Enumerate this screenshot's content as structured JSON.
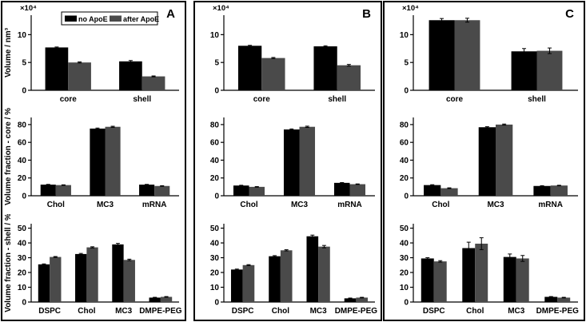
{
  "figure": {
    "background": "#ffffff",
    "border_color": "#000000",
    "panels": [
      {
        "label": "A"
      },
      {
        "label": "B"
      },
      {
        "label": "C"
      }
    ],
    "legend": {
      "items": [
        {
          "label": "no ApoE",
          "color": "#000000"
        },
        {
          "label": "after ApoE",
          "color": "#4a4a4a"
        }
      ],
      "position": "top-inside-panel-A"
    }
  },
  "colors": {
    "bar_no_apoe": "#000000",
    "bar_after_apoe": "#4a4a4a",
    "axis": "#000000",
    "background": "#ffffff"
  },
  "chart_data": [
    {
      "panel": "A",
      "row": "volume",
      "type": "bar",
      "ylabel": "Volume / nm³",
      "y_multiplier": "×10⁴",
      "show_legend": true,
      "categories": [
        "core",
        "shell"
      ],
      "ylim": [
        0,
        13.5
      ],
      "yticks": [
        0,
        5,
        10
      ],
      "grid": false,
      "series": [
        {
          "name": "no ApoE",
          "color": "#000000",
          "values": [
            7.7,
            5.2
          ],
          "errors": [
            0.08,
            0.15
          ]
        },
        {
          "name": "after ApoE",
          "color": "#4a4a4a",
          "values": [
            5.0,
            2.5
          ],
          "errors": [
            0.1,
            0.08
          ]
        }
      ]
    },
    {
      "panel": "A",
      "row": "core-fraction",
      "type": "bar",
      "ylabel": "Volume fraction - core / %",
      "y_multiplier": "",
      "show_legend": false,
      "categories": [
        "Chol",
        "MC3",
        "mRNA"
      ],
      "ylim": [
        0,
        88
      ],
      "yticks": [
        0,
        20,
        40,
        60,
        80
      ],
      "grid": false,
      "series": [
        {
          "name": "no ApoE",
          "color": "#000000",
          "values": [
            12.5,
            75.5,
            12.5
          ],
          "errors": [
            0.3,
            0.6,
            0.3
          ]
        },
        {
          "name": "after ApoE",
          "color": "#4a4a4a",
          "values": [
            12.0,
            77.5,
            11.0
          ],
          "errors": [
            0.3,
            0.6,
            0.3
          ]
        }
      ]
    },
    {
      "panel": "A",
      "row": "shell-fraction",
      "type": "bar",
      "ylabel": "Volume fraction - shell / %",
      "y_multiplier": "",
      "show_legend": false,
      "categories": [
        "DSPC",
        "Chol",
        "MC3",
        "DMPE-PEG"
      ],
      "ylim": [
        0,
        53
      ],
      "yticks": [
        0,
        10,
        20,
        30,
        40,
        50
      ],
      "grid": false,
      "series": [
        {
          "name": "no ApoE",
          "color": "#000000",
          "values": [
            25.5,
            32.5,
            39.0,
            3.0
          ],
          "errors": [
            0.3,
            0.4,
            0.7,
            0.2
          ]
        },
        {
          "name": "after ApoE",
          "color": "#4a4a4a",
          "values": [
            30.5,
            37.0,
            28.5,
            3.5
          ],
          "errors": [
            0.3,
            0.4,
            0.5,
            0.2
          ]
        }
      ]
    },
    {
      "panel": "B",
      "row": "volume",
      "type": "bar",
      "ylabel": "",
      "y_multiplier": "×10⁴",
      "show_legend": false,
      "categories": [
        "core",
        "shell"
      ],
      "ylim": [
        0,
        13.5
      ],
      "yticks": [
        0,
        5,
        10
      ],
      "grid": false,
      "series": [
        {
          "name": "no ApoE",
          "color": "#000000",
          "values": [
            8.0,
            7.9
          ],
          "errors": [
            0.08,
            0.1
          ]
        },
        {
          "name": "after ApoE",
          "color": "#4a4a4a",
          "values": [
            5.8,
            4.5
          ],
          "errors": [
            0.1,
            0.15
          ]
        }
      ]
    },
    {
      "panel": "B",
      "row": "core-fraction",
      "type": "bar",
      "ylabel": "",
      "y_multiplier": "",
      "show_legend": false,
      "categories": [
        "Chol",
        "MC3",
        "mRNA"
      ],
      "ylim": [
        0,
        88
      ],
      "yticks": [
        0,
        20,
        40,
        60,
        80
      ],
      "grid": false,
      "series": [
        {
          "name": "no ApoE",
          "color": "#000000",
          "values": [
            11.5,
            74.5,
            14.5
          ],
          "errors": [
            0.3,
            0.6,
            0.3
          ]
        },
        {
          "name": "after ApoE",
          "color": "#4a4a4a",
          "values": [
            10.0,
            77.5,
            13.0
          ],
          "errors": [
            0.3,
            0.7,
            0.3
          ]
        }
      ]
    },
    {
      "panel": "B",
      "row": "shell-fraction",
      "type": "bar",
      "ylabel": "",
      "y_multiplier": "",
      "show_legend": false,
      "categories": [
        "DSPC",
        "Chol",
        "MC3",
        "DMPE-PEG"
      ],
      "ylim": [
        0,
        53
      ],
      "yticks": [
        0,
        10,
        20,
        30,
        40,
        50
      ],
      "grid": false,
      "series": [
        {
          "name": "no ApoE",
          "color": "#000000",
          "values": [
            22.0,
            31.0,
            44.5,
            2.5
          ],
          "errors": [
            0.3,
            0.4,
            0.8,
            0.2
          ]
        },
        {
          "name": "after ApoE",
          "color": "#4a4a4a",
          "values": [
            25.0,
            35.0,
            37.5,
            3.0
          ],
          "errors": [
            0.3,
            0.4,
            0.8,
            0.2
          ]
        }
      ]
    },
    {
      "panel": "C",
      "row": "volume",
      "type": "bar",
      "ylabel": "",
      "y_multiplier": "×10⁴",
      "show_legend": false,
      "categories": [
        "core",
        "shell"
      ],
      "ylim": [
        0,
        13.5
      ],
      "yticks": [
        0,
        5,
        10
      ],
      "grid": false,
      "series": [
        {
          "name": "no ApoE",
          "color": "#000000",
          "values": [
            12.6,
            7.0
          ],
          "errors": [
            0.3,
            0.5
          ]
        },
        {
          "name": "after ApoE",
          "color": "#4a4a4a",
          "values": [
            12.6,
            7.1
          ],
          "errors": [
            0.35,
            0.5
          ]
        }
      ]
    },
    {
      "panel": "C",
      "row": "core-fraction",
      "type": "bar",
      "ylabel": "",
      "y_multiplier": "",
      "show_legend": false,
      "categories": [
        "Chol",
        "MC3",
        "mRNA"
      ],
      "ylim": [
        0,
        88
      ],
      "yticks": [
        0,
        20,
        40,
        60,
        80
      ],
      "grid": false,
      "series": [
        {
          "name": "no ApoE",
          "color": "#000000",
          "values": [
            12.0,
            77.0,
            11.0
          ],
          "errors": [
            0.4,
            0.6,
            0.3
          ]
        },
        {
          "name": "after ApoE",
          "color": "#4a4a4a",
          "values": [
            8.5,
            80.0,
            11.5
          ],
          "errors": [
            0.4,
            0.6,
            0.3
          ]
        }
      ]
    },
    {
      "panel": "C",
      "row": "shell-fraction",
      "type": "bar",
      "ylabel": "",
      "y_multiplier": "",
      "show_legend": false,
      "categories": [
        "DSPC",
        "Chol",
        "MC3",
        "DMPE-PEG"
      ],
      "ylim": [
        0,
        53
      ],
      "yticks": [
        0,
        10,
        20,
        30,
        40,
        50
      ],
      "grid": false,
      "series": [
        {
          "name": "no ApoE",
          "color": "#000000",
          "values": [
            29.5,
            36.5,
            30.5,
            3.5
          ],
          "errors": [
            0.5,
            4.0,
            2.0,
            0.2
          ]
        },
        {
          "name": "after ApoE",
          "color": "#4a4a4a",
          "values": [
            27.5,
            39.5,
            29.5,
            3.0
          ],
          "errors": [
            0.5,
            4.0,
            2.0,
            0.2
          ]
        }
      ]
    }
  ]
}
